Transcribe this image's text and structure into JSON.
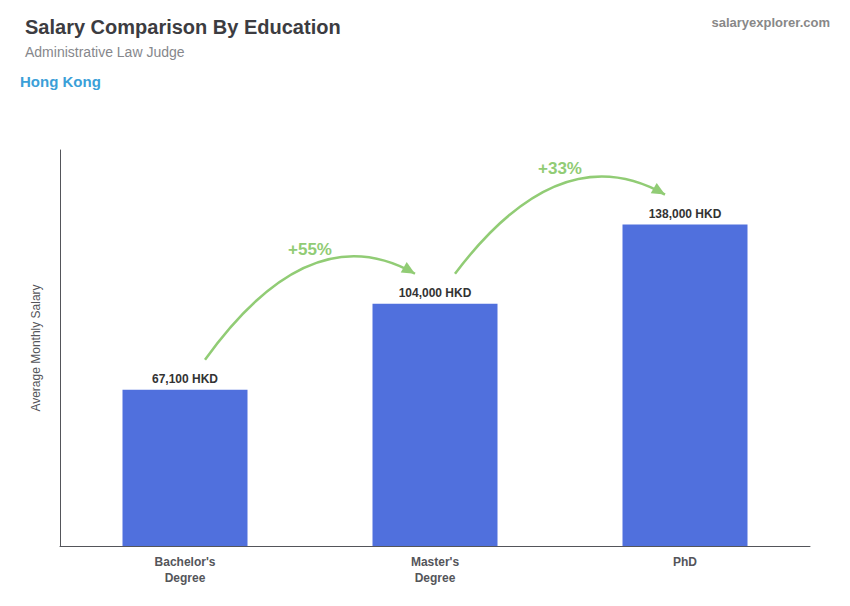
{
  "chart_data": {
    "type": "bar",
    "title": "Salary Comparison By Education",
    "subtitle": "Administrative Law Judge",
    "ylabel": "Average Monthly Salary",
    "categories": [
      "Bachelor's\nDegree",
      "Master's\nDegree",
      "PhD"
    ],
    "values": [
      67100,
      104000,
      138000
    ],
    "value_labels": [
      "67,100 HKD",
      "104,000 HKD",
      "138,000 HKD"
    ],
    "data_labels": true,
    "ylim": [
      0,
      170000
    ],
    "tick_labels": "x",
    "grid": false,
    "annotations": [
      {
        "text": "Hong Kong"
      },
      {
        "text": "salaryexplorer.com"
      },
      {
        "text": "+55%",
        "from": "Bachelor's\nDegree",
        "to": "Master's\nDegree"
      },
      {
        "text": "+33%",
        "from": "Master's\nDegree",
        "to": "PhD"
      }
    ]
  }
}
